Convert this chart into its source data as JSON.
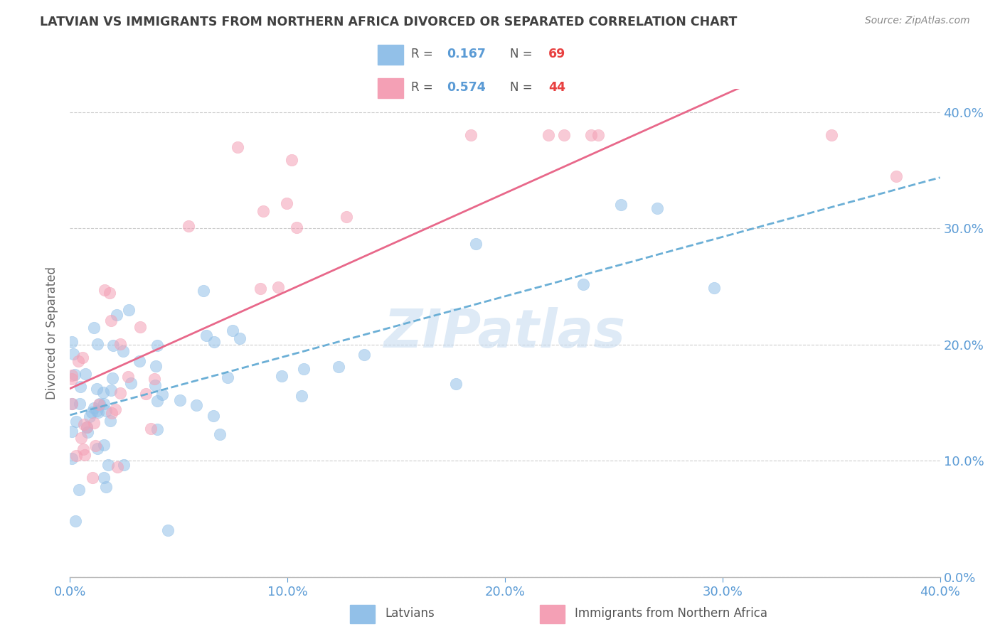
{
  "title": "LATVIAN VS IMMIGRANTS FROM NORTHERN AFRICA DIVORCED OR SEPARATED CORRELATION CHART",
  "source": "Source: ZipAtlas.com",
  "ylabel": "Divorced or Separated",
  "xlabel_latvians": "Latvians",
  "xlabel_immigrants": "Immigrants from Northern Africa",
  "R_latvians": 0.167,
  "N_latvians": 69,
  "R_immigrants": 0.574,
  "N_immigrants": 44,
  "xmin": 0.0,
  "xmax": 0.4,
  "ymin": 0.0,
  "ymax": 0.42,
  "color_latvians": "#92C0E8",
  "color_immigrants": "#F4A0B5",
  "color_trendline_latvians": "#6BAFD6",
  "color_trendline_immigrants": "#E8688A",
  "color_axis_blue": "#5B9BD5",
  "color_axis_red": "#E84040",
  "color_title": "#404040"
}
